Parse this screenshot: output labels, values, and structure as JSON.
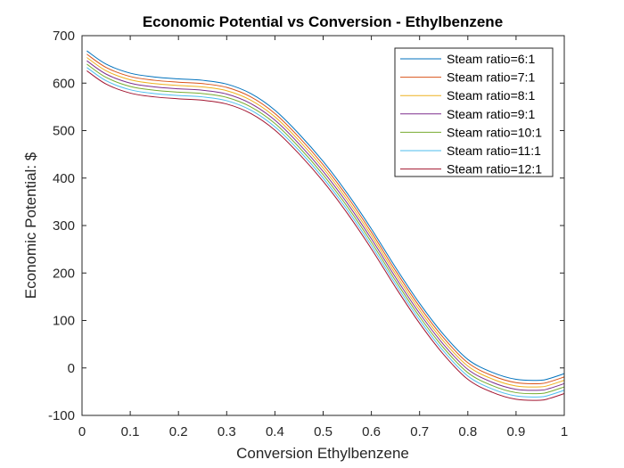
{
  "chart_data": {
    "type": "line",
    "title": "Economic Potential vs Conversion - Ethylbenzene",
    "xlabel": "Conversion Ethylbenzene",
    "ylabel": "Economic Potential: $",
    "xlim": [
      0,
      1
    ],
    "ylim": [
      -100,
      700
    ],
    "xticks": [
      "0",
      "0.1",
      "0.2",
      "0.3",
      "0.4",
      "0.5",
      "0.6",
      "0.7",
      "0.8",
      "0.9",
      "1"
    ],
    "yticks": [
      "-100",
      "0",
      "100",
      "200",
      "300",
      "400",
      "500",
      "600",
      "700"
    ],
    "grid": false,
    "legend_position": "top-right",
    "x": [
      0.01,
      0.05,
      0.1,
      0.15,
      0.2,
      0.25,
      0.3,
      0.35,
      0.4,
      0.45,
      0.5,
      0.55,
      0.6,
      0.65,
      0.7,
      0.75,
      0.8,
      0.85,
      0.9,
      0.95,
      0.97,
      1.0
    ],
    "series": [
      {
        "name": "Steam ratio=6:1",
        "color": "#0072BD",
        "values": [
          668,
          640,
          621,
          613,
          609,
          606,
          598,
          578,
          543,
          493,
          435,
          368,
          293,
          212,
          136,
          70,
          18,
          -9,
          -24,
          -26,
          -22,
          -12
        ]
      },
      {
        "name": "Steam ratio=7:1",
        "color": "#D95319",
        "values": [
          661,
          633,
          614,
          606,
          602,
          599,
          591,
          571,
          536,
          486,
          428,
          361,
          286,
          205,
          129,
          63,
          11,
          -16,
          -31,
          -33,
          -29,
          -19
        ]
      },
      {
        "name": "Steam ratio=8:1",
        "color": "#EDB120",
        "values": [
          654,
          626,
          607,
          599,
          595,
          592,
          584,
          564,
          529,
          479,
          421,
          354,
          279,
          198,
          122,
          56,
          4,
          -23,
          -38,
          -40,
          -36,
          -26
        ]
      },
      {
        "name": "Steam ratio=9:1",
        "color": "#7E2F8E",
        "values": [
          647,
          619,
          600,
          592,
          588,
          585,
          577,
          557,
          522,
          472,
          414,
          347,
          272,
          191,
          115,
          49,
          -3,
          -30,
          -45,
          -47,
          -43,
          -33
        ]
      },
      {
        "name": "Steam ratio=10:1",
        "color": "#77AC30",
        "values": [
          640,
          612,
          593,
          585,
          581,
          578,
          570,
          550,
          515,
          465,
          407,
          340,
          265,
          184,
          108,
          42,
          -10,
          -37,
          -52,
          -54,
          -50,
          -40
        ]
      },
      {
        "name": "Steam ratio=11:1",
        "color": "#4DBEEE",
        "values": [
          633,
          605,
          586,
          578,
          574,
          571,
          563,
          543,
          508,
          458,
          400,
          333,
          258,
          177,
          101,
          35,
          -17,
          -44,
          -59,
          -61,
          -57,
          -47
        ]
      },
      {
        "name": "Steam ratio=12:1",
        "color": "#A2142F",
        "values": [
          626,
          598,
          579,
          571,
          567,
          564,
          556,
          536,
          501,
          451,
          393,
          326,
          251,
          170,
          94,
          28,
          -24,
          -51,
          -66,
          -68,
          -64,
          -54
        ]
      }
    ]
  }
}
